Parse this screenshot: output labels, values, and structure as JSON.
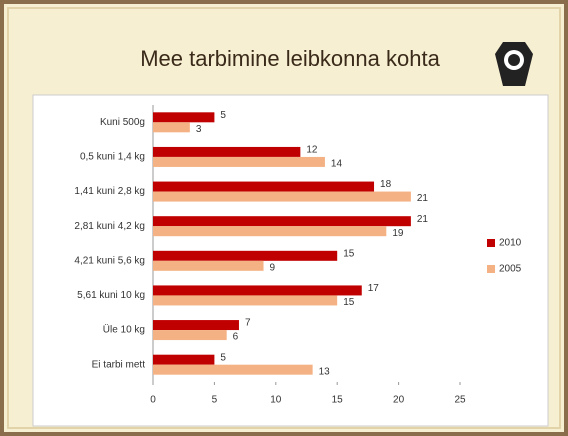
{
  "chart_data": {
    "type": "bar",
    "orientation": "horizontal",
    "title": "Mee tarbimine leibkonna kohta",
    "categories": [
      "Kuni 500g",
      "0,5 kuni 1,4 kg",
      "1,41 kuni 2,8 kg",
      "2,81 kuni 4,2 kg",
      "4,21 kuni 5,6 kg",
      "5,61 kuni 10 kg",
      "Üle 10 kg",
      "Ei tarbi mett"
    ],
    "series": [
      {
        "name": "2010",
        "color": "#c00000",
        "values": [
          5,
          12,
          18,
          21,
          15,
          17,
          7,
          5
        ]
      },
      {
        "name": "2005",
        "color": "#f4b183",
        "values": [
          3,
          14,
          21,
          19,
          9,
          15,
          6,
          13
        ]
      }
    ],
    "xlim": [
      0,
      25
    ],
    "xticks": [
      0,
      5,
      10,
      15,
      20,
      25
    ],
    "grid": false,
    "legend": "right"
  }
}
